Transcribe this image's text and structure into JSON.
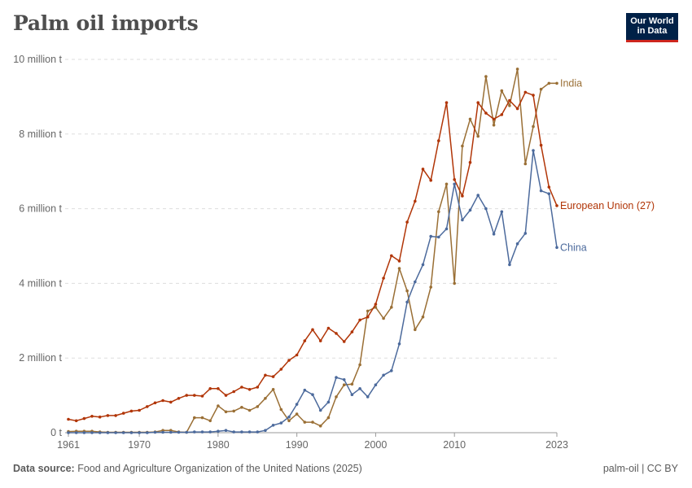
{
  "header": {
    "title": "Palm oil imports"
  },
  "logo": {
    "line1": "Our World",
    "line2": "in Data"
  },
  "footer": {
    "source_label": "Data source:",
    "source_text": "Food and Agriculture Organization of the United Nations (2025)",
    "license": "palm-oil | CC BY"
  },
  "chart_data": {
    "type": "line",
    "title": "Palm oil imports",
    "xlim": [
      1961,
      2023
    ],
    "ylim": [
      0,
      10000000
    ],
    "y_ticks": [
      0,
      2000000,
      4000000,
      6000000,
      8000000,
      10000000
    ],
    "y_tick_labels": [
      "0 t",
      "2 million t",
      "4 million t",
      "6 million t",
      "8 million t",
      "10 million t"
    ],
    "x_tick_labels": [
      1961,
      1970,
      1980,
      1990,
      2000,
      2010,
      2023
    ],
    "grid": "horizontal dashed",
    "series": [
      {
        "name": "India",
        "color": "#9a6f35",
        "years": [
          1961,
          1962,
          1963,
          1964,
          1965,
          1966,
          1967,
          1968,
          1969,
          1970,
          1971,
          1972,
          1973,
          1974,
          1975,
          1976,
          1977,
          1978,
          1979,
          1980,
          1981,
          1982,
          1983,
          1984,
          1985,
          1986,
          1987,
          1988,
          1989,
          1990,
          1991,
          1992,
          1993,
          1994,
          1995,
          1996,
          1997,
          1998,
          1999,
          2000,
          2001,
          2002,
          2003,
          2004,
          2005,
          2006,
          2007,
          2008,
          2009,
          2010,
          2011,
          2012,
          2013,
          2014,
          2015,
          2016,
          2017,
          2018,
          2019,
          2020,
          2021,
          2022,
          2023
        ],
        "values": [
          30000,
          40000,
          40000,
          40000,
          20000,
          10000,
          10000,
          10000,
          10000,
          10000,
          10000,
          20000,
          60000,
          60000,
          20000,
          10000,
          400000,
          400000,
          320000,
          720000,
          560000,
          580000,
          680000,
          600000,
          700000,
          920000,
          1160000,
          620000,
          320000,
          500000,
          280000,
          280000,
          180000,
          400000,
          960000,
          1280000,
          1300000,
          1820000,
          3260000,
          3360000,
          3060000,
          3360000,
          4400000,
          3800000,
          2760000,
          3100000,
          3900000,
          5920000,
          6660000,
          4000000,
          7680000,
          8400000,
          7940000,
          9540000,
          8240000,
          9160000,
          8760000,
          9740000,
          7200000,
          8200000,
          9200000,
          9360000,
          9360000
        ]
      },
      {
        "name": "European Union (27)",
        "color": "#b13507",
        "years": [
          1961,
          1962,
          1963,
          1964,
          1965,
          1966,
          1967,
          1968,
          1969,
          1970,
          1971,
          1972,
          1973,
          1974,
          1975,
          1976,
          1977,
          1978,
          1979,
          1980,
          1981,
          1982,
          1983,
          1984,
          1985,
          1986,
          1987,
          1988,
          1989,
          1990,
          1991,
          1992,
          1993,
          1994,
          1995,
          1996,
          1997,
          1998,
          1999,
          2000,
          2001,
          2002,
          2003,
          2004,
          2005,
          2006,
          2007,
          2008,
          2009,
          2010,
          2011,
          2012,
          2013,
          2014,
          2015,
          2016,
          2017,
          2018,
          2019,
          2020,
          2021,
          2022,
          2023
        ],
        "values": [
          360000,
          320000,
          380000,
          440000,
          420000,
          460000,
          460000,
          520000,
          580000,
          600000,
          700000,
          800000,
          860000,
          820000,
          920000,
          1000000,
          1000000,
          980000,
          1180000,
          1180000,
          1000000,
          1100000,
          1220000,
          1160000,
          1220000,
          1540000,
          1500000,
          1700000,
          1940000,
          2080000,
          2460000,
          2760000,
          2460000,
          2800000,
          2660000,
          2440000,
          2700000,
          3020000,
          3100000,
          3440000,
          4140000,
          4740000,
          4600000,
          5640000,
          6200000,
          7060000,
          6760000,
          7820000,
          8840000,
          6780000,
          6340000,
          7240000,
          8840000,
          8560000,
          8400000,
          8520000,
          8900000,
          8680000,
          9120000,
          9040000,
          7700000,
          6580000,
          6080000
        ]
      },
      {
        "name": "China",
        "color": "#4c6a9c",
        "years": [
          1961,
          1962,
          1963,
          1964,
          1965,
          1966,
          1967,
          1968,
          1969,
          1970,
          1971,
          1972,
          1973,
          1974,
          1975,
          1976,
          1977,
          1978,
          1979,
          1980,
          1981,
          1982,
          1983,
          1984,
          1985,
          1986,
          1987,
          1988,
          1989,
          1990,
          1991,
          1992,
          1993,
          1994,
          1995,
          1996,
          1997,
          1998,
          1999,
          2000,
          2001,
          2002,
          2003,
          2004,
          2005,
          2006,
          2007,
          2008,
          2009,
          2010,
          2011,
          2012,
          2013,
          2014,
          2015,
          2016,
          2017,
          2018,
          2019,
          2020,
          2021,
          2022,
          2023
        ],
        "values": [
          0,
          0,
          0,
          0,
          0,
          0,
          0,
          0,
          0,
          0,
          0,
          10000,
          10000,
          10000,
          10000,
          10000,
          20000,
          20000,
          20000,
          40000,
          60000,
          20000,
          20000,
          20000,
          20000,
          60000,
          200000,
          260000,
          420000,
          760000,
          1140000,
          1020000,
          600000,
          820000,
          1480000,
          1420000,
          1020000,
          1180000,
          960000,
          1280000,
          1540000,
          1660000,
          2380000,
          3500000,
          4040000,
          4500000,
          5260000,
          5240000,
          5460000,
          6660000,
          5700000,
          5960000,
          6360000,
          6000000,
          5320000,
          5920000,
          4500000,
          5060000,
          5340000,
          7560000,
          6480000,
          6400000,
          4960000
        ]
      }
    ],
    "end_labels": [
      {
        "name": "India",
        "text": "India"
      },
      {
        "name": "European Union (27)",
        "text": "European Union (27)"
      },
      {
        "name": "China",
        "text": "China"
      }
    ]
  }
}
